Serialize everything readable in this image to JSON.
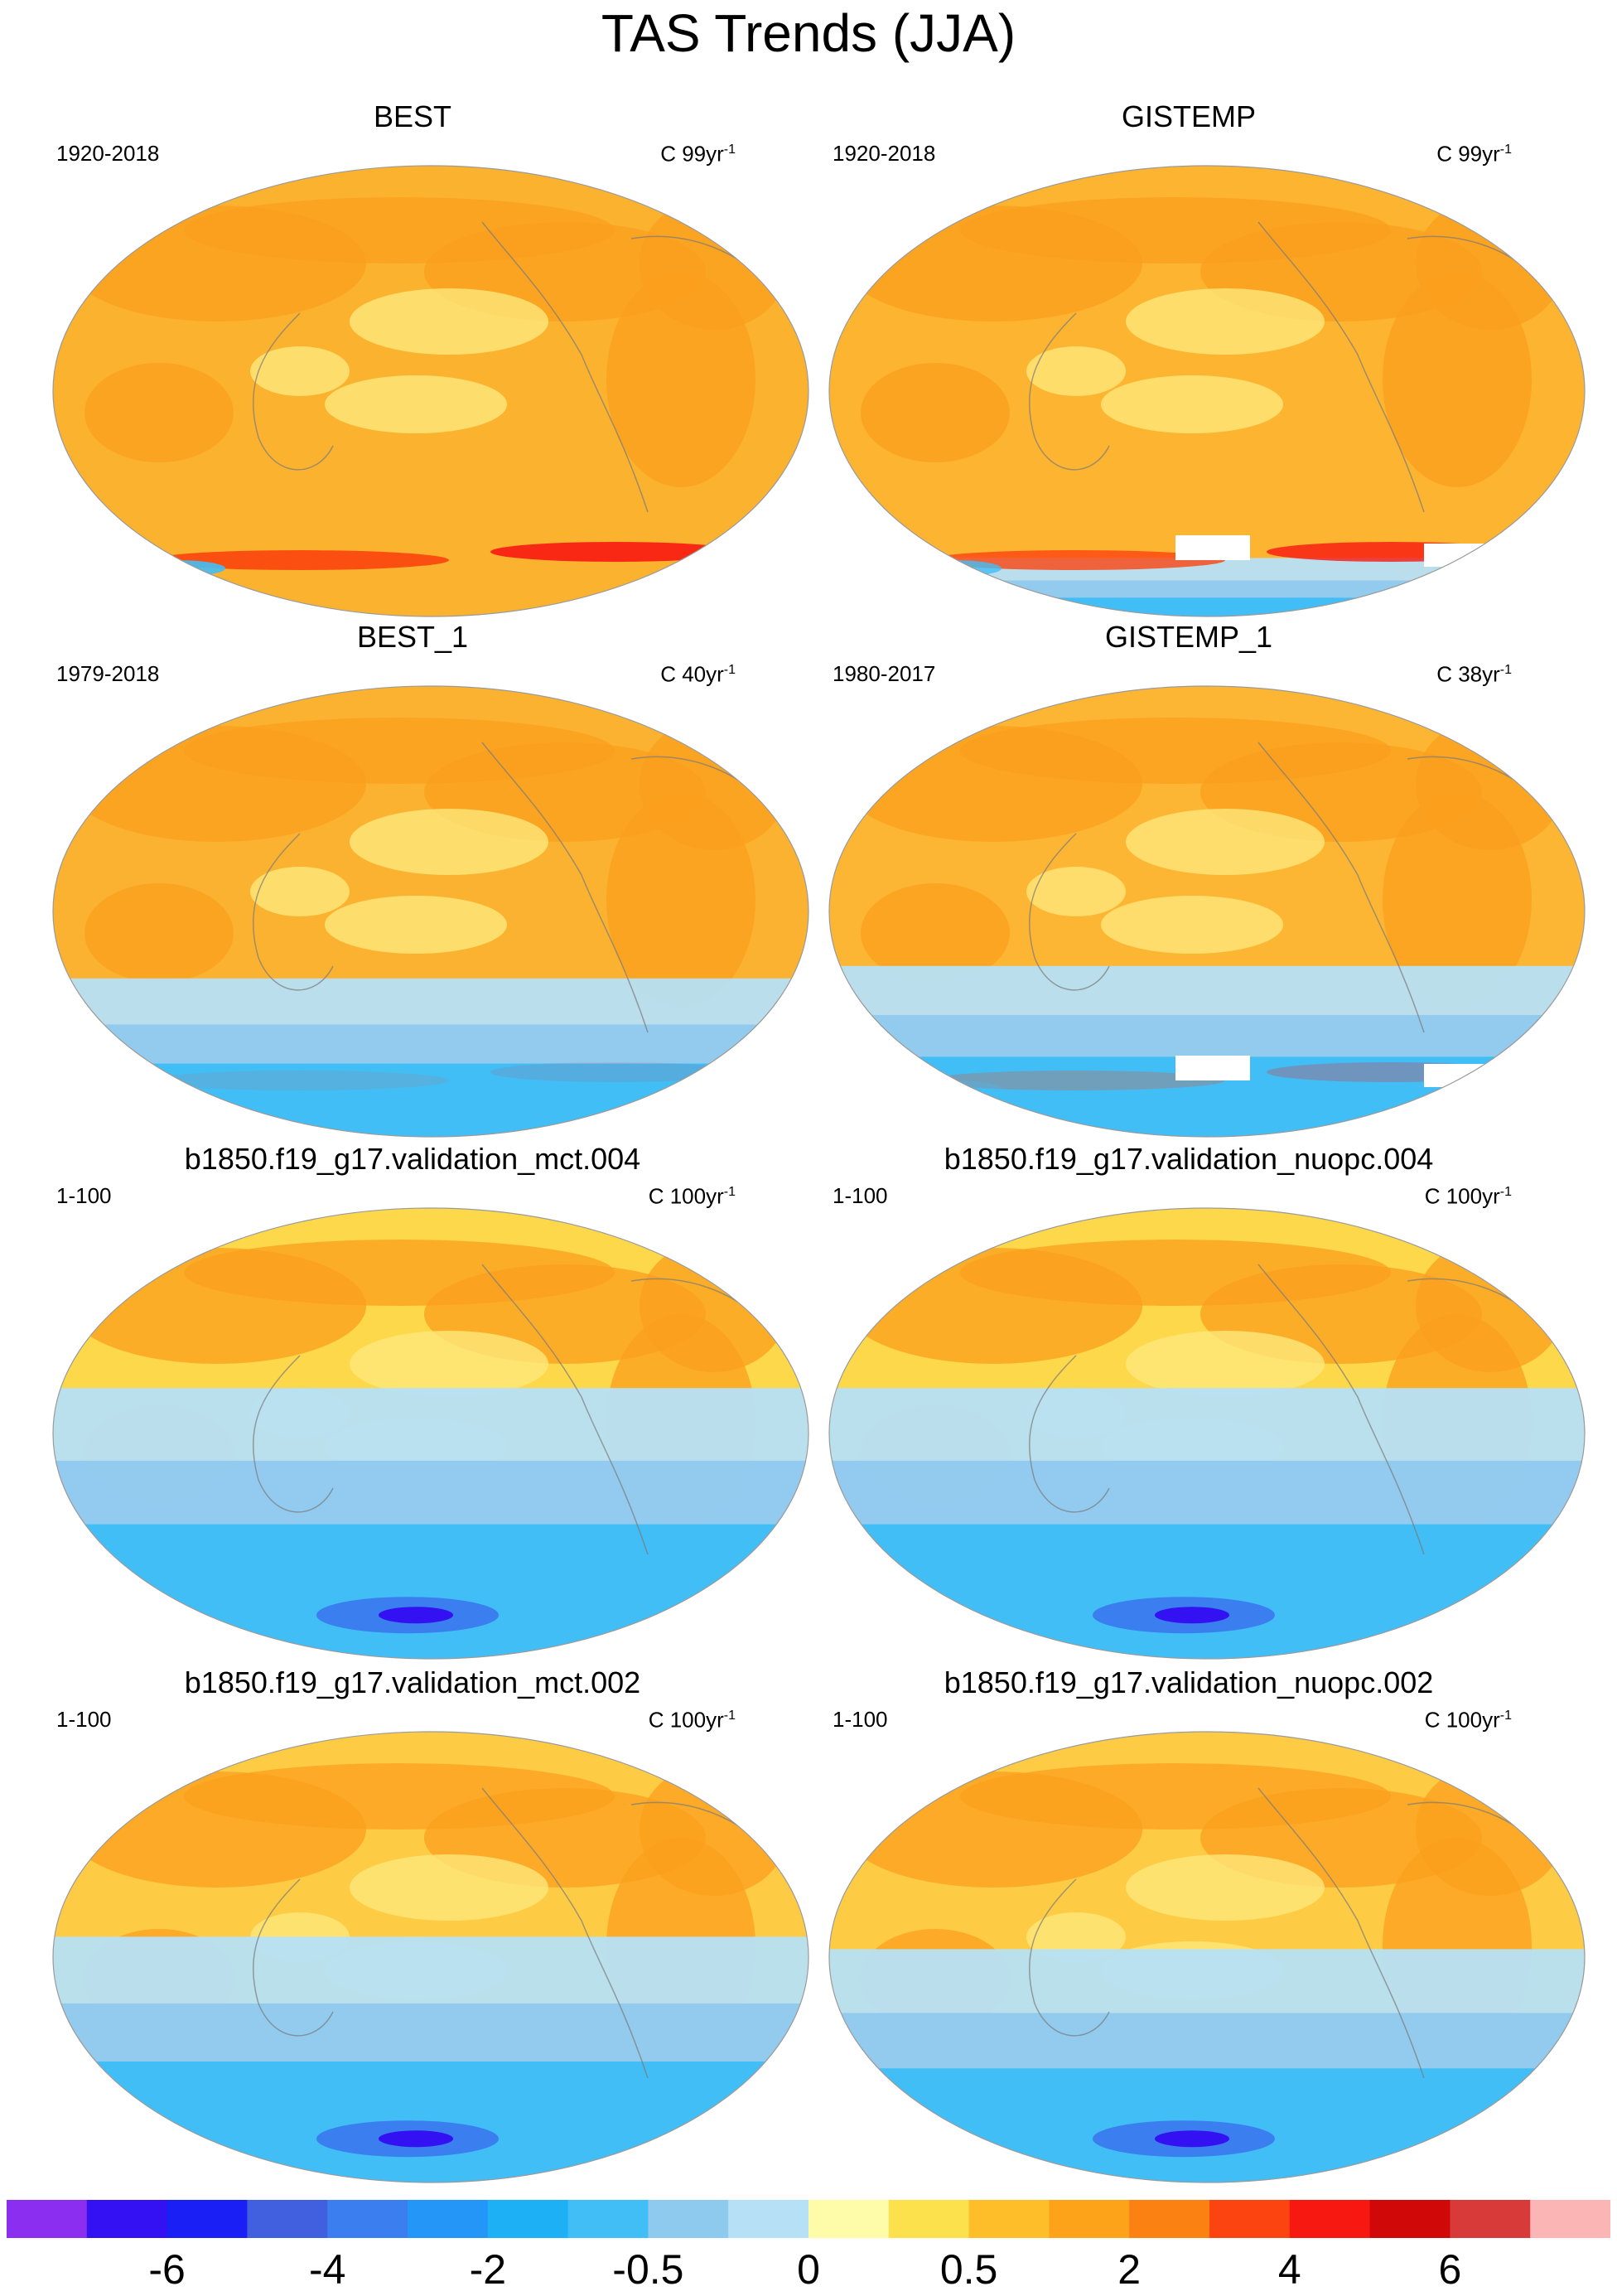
{
  "figure": {
    "title": "TAS Trends (JJA)"
  },
  "panels": [
    {
      "title": "BEST",
      "period": "1920-2018",
      "units": "C 99yr",
      "units_exp": "-1",
      "base": "#fbb22f",
      "cold_south": 0.0,
      "warm_belt": 0.9,
      "white_gaps": false
    },
    {
      "title": "GISTEMP",
      "period": "1920-2018",
      "units": "C 99yr",
      "units_exp": "-1",
      "base": "#fcb431",
      "cold_south": 0.15,
      "warm_belt": 0.8,
      "white_gaps": true
    },
    {
      "title": "BEST_1",
      "period": "1979-2018",
      "units": "C 40yr",
      "units_exp": "-1",
      "base": "#fbb230",
      "cold_south": 0.55,
      "warm_belt": 0.1,
      "white_gaps": false
    },
    {
      "title": "GISTEMP_1",
      "period": "1980-2017",
      "units": "C 38yr",
      "units_exp": "-1",
      "base": "#fcb633",
      "cold_south": 0.6,
      "warm_belt": 0.25,
      "white_gaps": true
    },
    {
      "title": "b1850.f19_g17.validation_mct.004",
      "period": "1-100",
      "units": "C 100yr",
      "units_exp": "-1",
      "base": "#fdd84a",
      "cold_south": 1.0,
      "warm_belt": 0.0,
      "white_gaps": false
    },
    {
      "title": "b1850.f19_g17.validation_nuopc.004",
      "period": "1-100",
      "units": "C 100yr",
      "units_exp": "-1",
      "base": "#fdd84a",
      "cold_south": 1.0,
      "warm_belt": 0.0,
      "white_gaps": false
    },
    {
      "title": "b1850.f19_g17.validation_mct.002",
      "period": "1-100",
      "units": "C 100yr",
      "units_exp": "-1",
      "base": "#fdcc44",
      "cold_south": 0.9,
      "warm_belt": 0.0,
      "white_gaps": false
    },
    {
      "title": "b1850.f19_g17.validation_nuopc.002",
      "period": "1-100",
      "units": "C 100yr",
      "units_exp": "-1",
      "base": "#fdcc44",
      "cold_south": 0.85,
      "warm_belt": 0.0,
      "white_gaps": false
    }
  ],
  "colorbar": {
    "colors": [
      "#8c2ef0",
      "#3311f2",
      "#1a20f5",
      "#4060e0",
      "#3a7ef0",
      "#2496f8",
      "#1eb0f5",
      "#42bef6",
      "#8ec9ee",
      "#b6e0f6",
      "#fefca8",
      "#fde14c",
      "#fdbe2a",
      "#fca31a",
      "#fb8212",
      "#fb4410",
      "#f81812",
      "#d00808",
      "#d83a3a",
      "#fbb5b5"
    ],
    "labels": [
      {
        "text": "-6",
        "boundary": 2
      },
      {
        "text": "-4",
        "boundary": 4
      },
      {
        "text": "-2",
        "boundary": 6
      },
      {
        "text": "-0.5",
        "boundary": 8
      },
      {
        "text": "0",
        "boundary": 10
      },
      {
        "text": "0.5",
        "boundary": 12
      },
      {
        "text": "2",
        "boundary": 14
      },
      {
        "text": "4",
        "boundary": 16
      },
      {
        "text": "6",
        "boundary": 18
      }
    ]
  }
}
